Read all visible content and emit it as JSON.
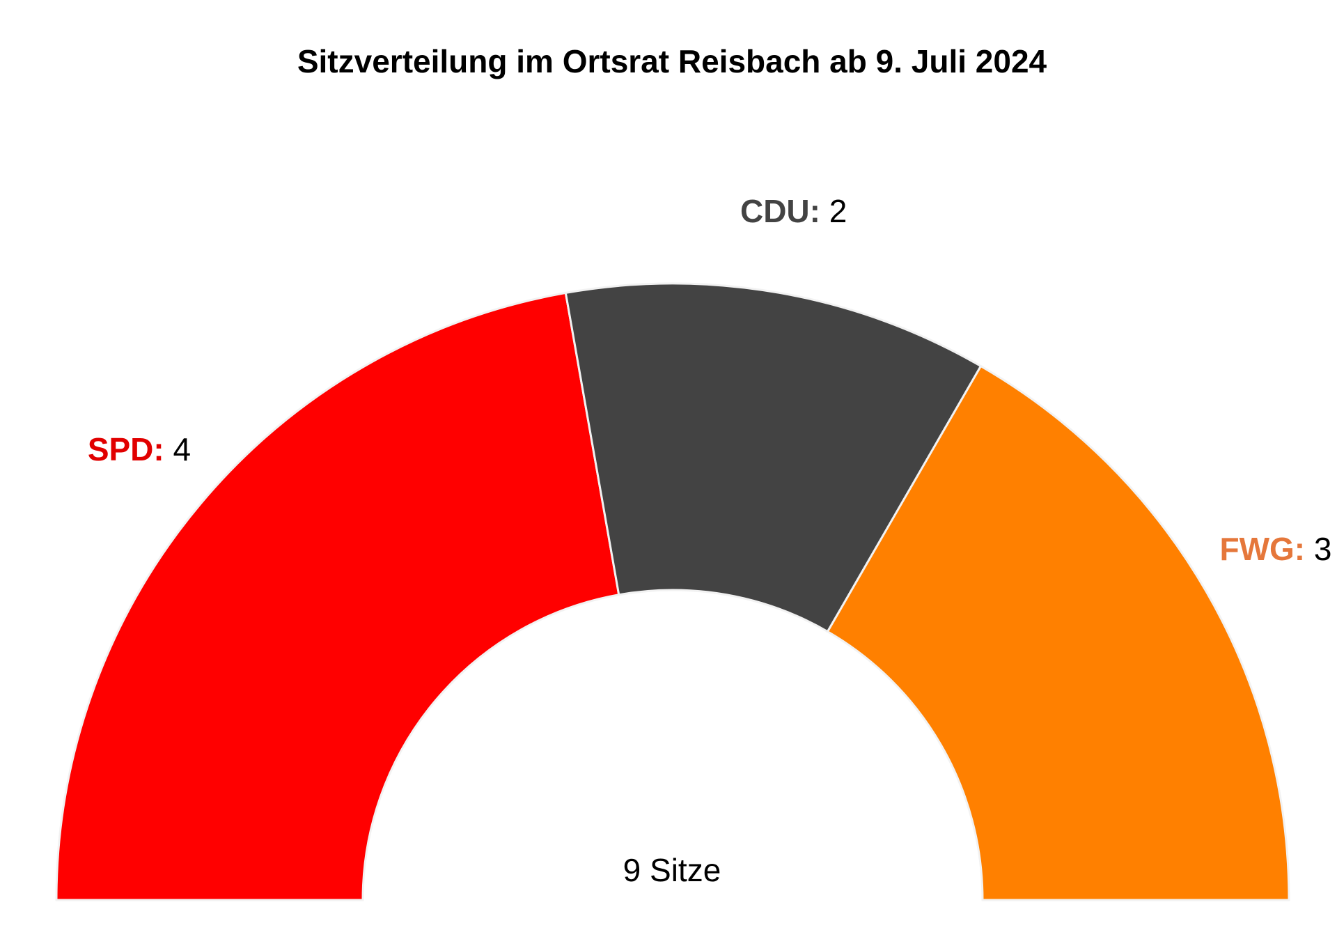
{
  "chart_data": {
    "type": "pie",
    "title": "Sitzverteilung im Ortsrat Reisbach ab 9. Juli 2024",
    "center_label": "9 Sitze",
    "total_seats": 9,
    "shape": "half-donut",
    "slices": [
      {
        "party": "SPD",
        "party_label": "SPD:",
        "seats": 4,
        "seats_label": "4",
        "color": "#FF0000",
        "label_color": "#E10000"
      },
      {
        "party": "CDU",
        "party_label": "CDU:",
        "seats": 2,
        "seats_label": "2",
        "color": "#434343",
        "label_color": "#434343"
      },
      {
        "party": "FWG",
        "party_label": "FWG:",
        "seats": 3,
        "seats_label": "3",
        "color": "#FF8000",
        "label_color": "#E5773B"
      }
    ]
  }
}
